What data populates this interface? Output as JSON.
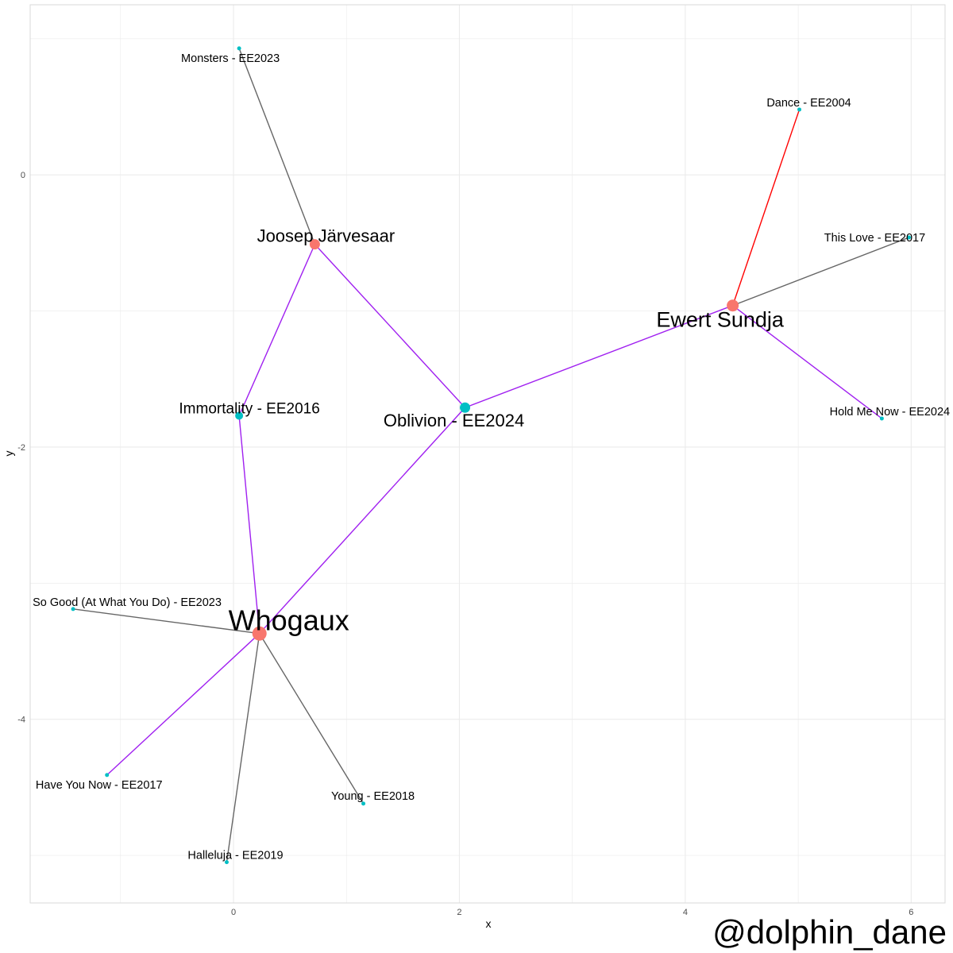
{
  "chart_data": {
    "type": "scatter",
    "title": "",
    "xlabel": "x",
    "ylabel": "y",
    "xlim": [
      -1.8,
      6.3
    ],
    "ylim": [
      -5.35,
      1.25
    ],
    "grid": true,
    "x_ticks": [
      0,
      2,
      4,
      6
    ],
    "y_ticks": [
      0,
      -2,
      -4
    ],
    "nodes": [
      {
        "id": "whogaux",
        "label": "Whogaux",
        "x": 0.23,
        "y": -3.37,
        "type": "artist",
        "size": "xlarge"
      },
      {
        "id": "joosep",
        "label": "Joosep Järvesaar",
        "x": 0.72,
        "y": -0.51,
        "type": "artist",
        "size": "medium"
      },
      {
        "id": "ewert",
        "label": "Ewert Sundja",
        "x": 4.42,
        "y": -0.96,
        "type": "artist",
        "size": "large"
      },
      {
        "id": "oblivion",
        "label": "Oblivion - EE2024",
        "x": 2.05,
        "y": -1.71,
        "type": "song",
        "size": "medium"
      },
      {
        "id": "immortality",
        "label": "Immortality - EE2016",
        "x": 0.05,
        "y": -1.77,
        "type": "song",
        "size": "small"
      },
      {
        "id": "monsters",
        "label": "Monsters - EE2023",
        "x": 0.05,
        "y": 0.93,
        "type": "song",
        "size": "tiny"
      },
      {
        "id": "dance",
        "label": "Dance - EE2004",
        "x": 5.01,
        "y": 0.48,
        "type": "song",
        "size": "tiny"
      },
      {
        "id": "thislove",
        "label": "This Love - EE2017",
        "x": 5.98,
        "y": -0.46,
        "type": "song",
        "size": "tiny"
      },
      {
        "id": "holdme",
        "label": "Hold Me Now - EE2024",
        "x": 5.74,
        "y": -1.79,
        "type": "song",
        "size": "tiny"
      },
      {
        "id": "sogood",
        "label": "So Good (At What You Do) - EE2023",
        "x": -1.42,
        "y": -3.19,
        "type": "song",
        "size": "tiny"
      },
      {
        "id": "haveyou",
        "label": "Have You Now - EE2017",
        "x": -1.12,
        "y": -4.41,
        "type": "song",
        "size": "tiny"
      },
      {
        "id": "halleluja",
        "label": "Halleluja - EE2019",
        "x": -0.06,
        "y": -5.05,
        "type": "song",
        "size": "tiny"
      },
      {
        "id": "young",
        "label": "Young - EE2018",
        "x": 1.15,
        "y": -4.62,
        "type": "song",
        "size": "tiny"
      }
    ],
    "edges": [
      {
        "from": "joosep",
        "to": "monsters",
        "color": "#666666"
      },
      {
        "from": "joosep",
        "to": "immortality",
        "color": "#A020F0"
      },
      {
        "from": "joosep",
        "to": "oblivion",
        "color": "#A020F0"
      },
      {
        "from": "ewert",
        "to": "dance",
        "color": "#FF0000"
      },
      {
        "from": "ewert",
        "to": "thislove",
        "color": "#666666"
      },
      {
        "from": "ewert",
        "to": "holdme",
        "color": "#A020F0"
      },
      {
        "from": "ewert",
        "to": "oblivion",
        "color": "#A020F0"
      },
      {
        "from": "whogaux",
        "to": "oblivion",
        "color": "#A020F0"
      },
      {
        "from": "whogaux",
        "to": "immortality",
        "color": "#A020F0"
      },
      {
        "from": "whogaux",
        "to": "sogood",
        "color": "#666666"
      },
      {
        "from": "whogaux",
        "to": "haveyou",
        "color": "#A020F0"
      },
      {
        "from": "whogaux",
        "to": "halleluja",
        "color": "#666666"
      },
      {
        "from": "whogaux",
        "to": "young",
        "color": "#666666"
      }
    ]
  },
  "colors": {
    "artist": "#F8766D",
    "song": "#00BFC4",
    "grid": "#EBEBEB",
    "panel_border": "#D9D9D9"
  },
  "credit": "@dolphin_dane"
}
